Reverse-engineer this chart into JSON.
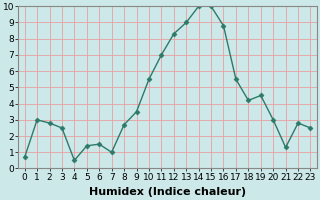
{
  "x": [
    0,
    1,
    2,
    3,
    4,
    5,
    6,
    7,
    8,
    9,
    10,
    11,
    12,
    13,
    14,
    15,
    16,
    17,
    18,
    19,
    20,
    21,
    22,
    23
  ],
  "y": [
    0.7,
    3.0,
    2.8,
    2.5,
    0.5,
    1.4,
    1.5,
    1.0,
    2.7,
    3.5,
    5.5,
    7.0,
    8.3,
    9.0,
    10.0,
    10.0,
    8.8,
    5.5,
    4.2,
    4.5,
    3.0,
    1.3,
    2.8,
    2.5
  ],
  "xlabel": "Humidex (Indice chaleur)",
  "ylim": [
    0,
    10
  ],
  "xlim": [
    -0.5,
    23.5
  ],
  "yticks": [
    0,
    1,
    2,
    3,
    4,
    5,
    6,
    7,
    8,
    9,
    10
  ],
  "xticks": [
    0,
    1,
    2,
    3,
    4,
    5,
    6,
    7,
    8,
    9,
    10,
    11,
    12,
    13,
    14,
    15,
    16,
    17,
    18,
    19,
    20,
    21,
    22,
    23
  ],
  "xtick_labels": [
    "0",
    "1",
    "2",
    "3",
    "4",
    "5",
    "6",
    "7",
    "8",
    "9",
    "10",
    "11",
    "12",
    "13",
    "14",
    "15",
    "16",
    "17",
    "18",
    "19",
    "20",
    "21",
    "22",
    "23"
  ],
  "line_color": "#2d7a6a",
  "marker": "D",
  "marker_size": 2.5,
  "line_width": 1.0,
  "bg_color": "#cce8e8",
  "grid_color": "#e8a0a0",
  "xlabel_fontsize": 8,
  "tick_fontsize": 6.5,
  "xlabel_fontweight": "bold",
  "spine_color": "#888888"
}
